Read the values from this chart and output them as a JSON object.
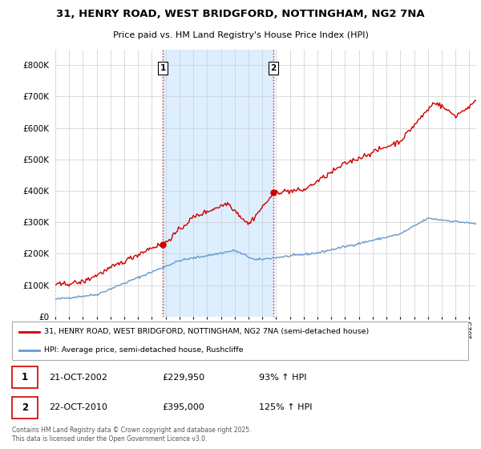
{
  "title_line1": "31, HENRY ROAD, WEST BRIDGFORD, NOTTINGHAM, NG2 7NA",
  "title_line2": "Price paid vs. HM Land Registry's House Price Index (HPI)",
  "legend_label1": "31, HENRY ROAD, WEST BRIDGFORD, NOTTINGHAM, NG2 7NA (semi-detached house)",
  "legend_label2": "HPI: Average price, semi-detached house, Rushcliffe",
  "sale1_label": "1",
  "sale2_label": "2",
  "sale1_date": "21-OCT-2002",
  "sale1_price": "£229,950",
  "sale1_hpi": "93% ↑ HPI",
  "sale2_date": "22-OCT-2010",
  "sale2_price": "£395,000",
  "sale2_hpi": "125% ↑ HPI",
  "footer": "Contains HM Land Registry data © Crown copyright and database right 2025.\nThis data is licensed under the Open Government Licence v3.0.",
  "line_color_price": "#cc0000",
  "line_color_hpi": "#6699cc",
  "plot_bg_color": "#ffffff",
  "shaded_color": "#ddeeff",
  "grid_color": "#cccccc",
  "vline_color": "#cc0000",
  "ylim": [
    0,
    850000
  ],
  "yticks": [
    0,
    100000,
    200000,
    300000,
    400000,
    500000,
    600000,
    700000,
    800000
  ],
  "sale1_x": 2002.8,
  "sale2_x": 2010.8,
  "sale1_price_val": 229950,
  "sale2_price_val": 395000
}
